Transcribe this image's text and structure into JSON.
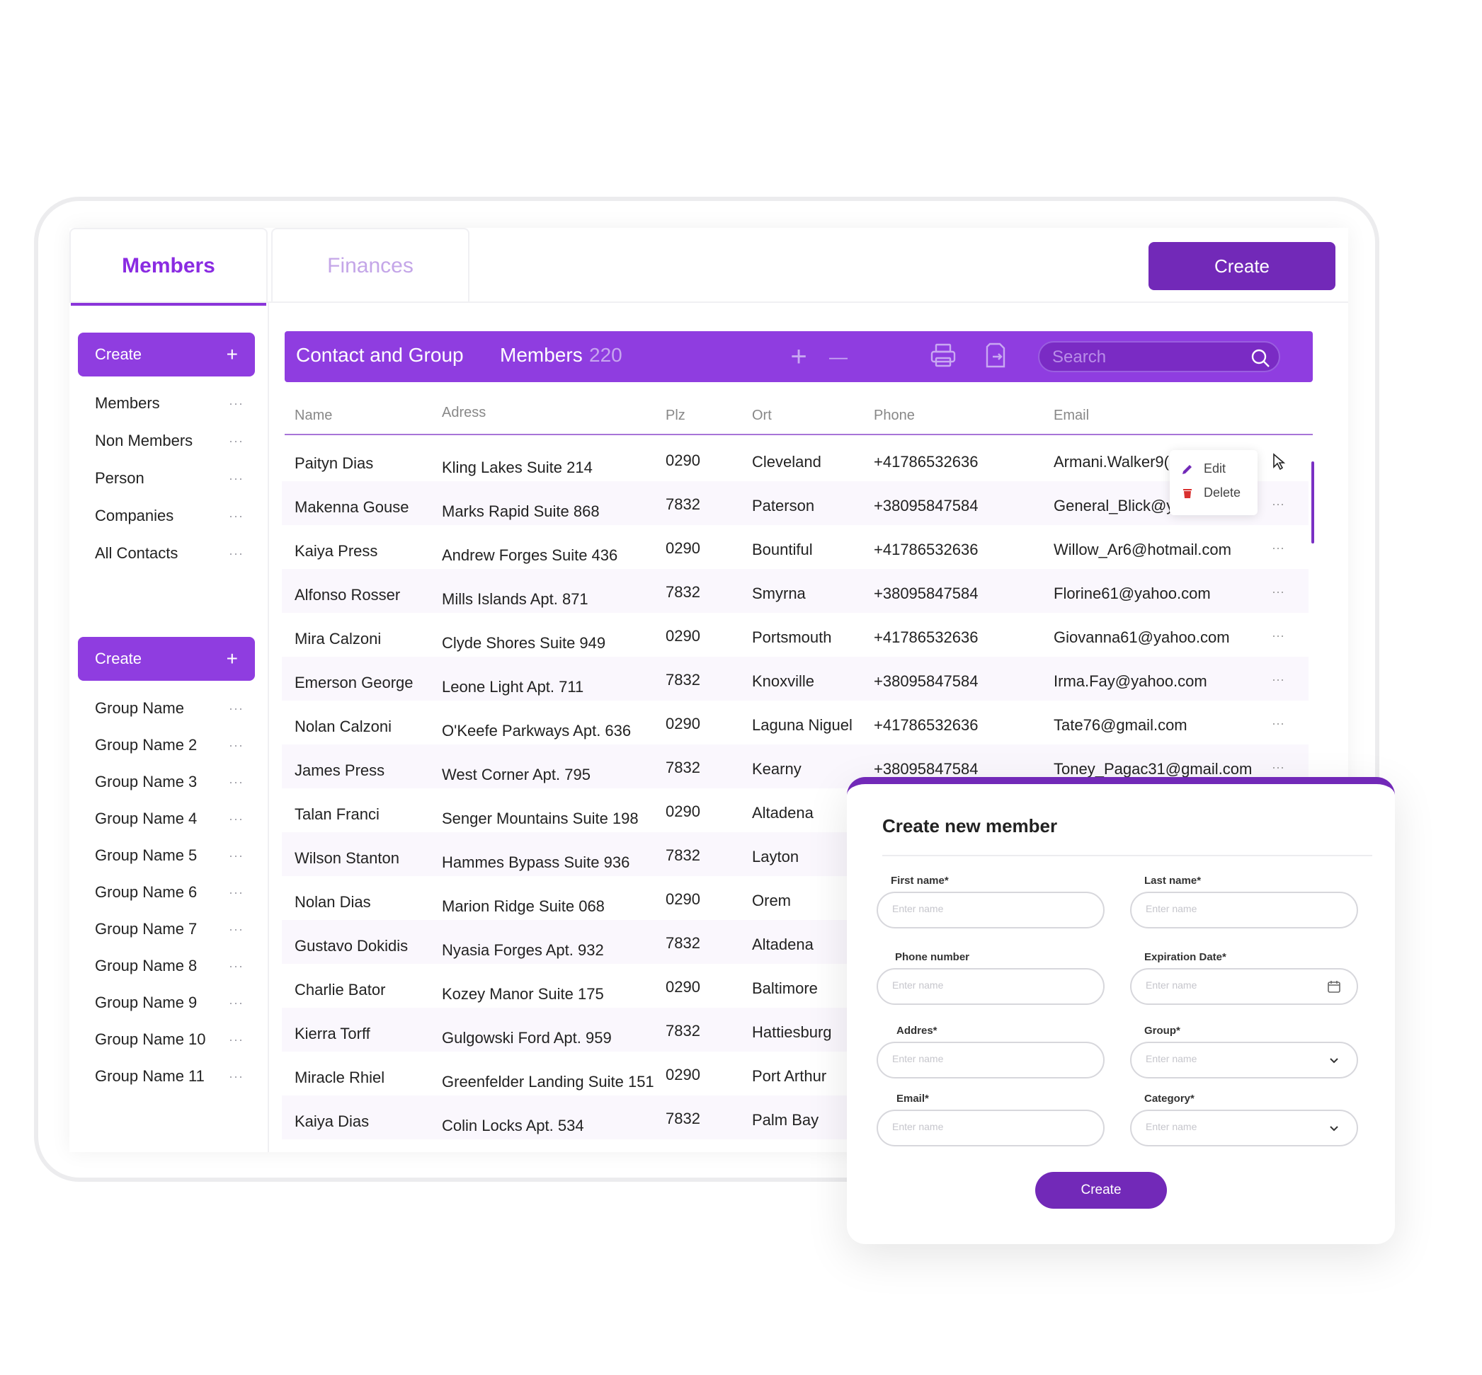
{
  "tabs": {
    "members": "Members",
    "finances": "Finances"
  },
  "top_create": "Create",
  "sidebar": {
    "create1": "Create",
    "create2": "Create",
    "plus": "+",
    "dots": "···",
    "contacts": [
      "Members",
      "Non Members",
      "Person",
      "Companies",
      "All Contacts"
    ],
    "groups": [
      "Group Name",
      "Group Name 2",
      "Group Name 3",
      "Group Name 4",
      "Group Name 5",
      "Group Name 6",
      "Group Name 7",
      "Group Name 8",
      "Group Name 9",
      "Group Name 10",
      "Group Name 11"
    ]
  },
  "toolbar": {
    "title": "Contact and Group",
    "members_label": "Members",
    "members_count": "220",
    "plus": "+",
    "minus": "—",
    "search_placeholder": "Search"
  },
  "table": {
    "headers": [
      "Name",
      "Adress",
      "Plz",
      "Ort",
      "Phone",
      "Email"
    ],
    "rows": [
      [
        "Paityn Dias",
        "Kling Lakes Suite 214",
        "0290",
        "Cleveland",
        "+41786532636",
        "Armani.Walker9("
      ],
      [
        "Makenna Gouse",
        "Marks Rapid Suite 868",
        "7832",
        "Paterson",
        "+38095847584",
        "General_Blick@y"
      ],
      [
        "Kaiya Press",
        "Andrew Forges Suite 436",
        "0290",
        "Bountiful",
        "+41786532636",
        "Willow_Ar6@hotmail.com"
      ],
      [
        "Alfonso Rosser",
        "Mills Islands Apt. 871",
        "7832",
        "Smyrna",
        "+38095847584",
        "Florine61@yahoo.com"
      ],
      [
        "Mira Calzoni",
        "Clyde Shores Suite 949",
        "0290",
        "Portsmouth",
        "+41786532636",
        "Giovanna61@yahoo.com"
      ],
      [
        "Emerson George",
        "Leone Light Apt. 711",
        "7832",
        "Knoxville",
        "+38095847584",
        "Irma.Fay@yahoo.com"
      ],
      [
        "Nolan Calzoni",
        "O'Keefe Parkways Apt. 636",
        "0290",
        "Laguna Niguel",
        "+41786532636",
        "Tate76@gmail.com"
      ],
      [
        "James Press",
        "West Corner Apt. 795",
        "7832",
        "Kearny",
        "+38095847584",
        "Toney_Pagac31@gmail.com"
      ],
      [
        "Talan Franci",
        "Senger Mountains Suite 198",
        "0290",
        "Altadena",
        "",
        ""
      ],
      [
        "Wilson Stanton",
        "Hammes Bypass Suite 936",
        "7832",
        "Layton",
        "",
        ""
      ],
      [
        "Nolan Dias",
        "Marion Ridge Suite 068",
        "0290",
        "Orem",
        "",
        ""
      ],
      [
        "Gustavo Dokidis",
        "Nyasia Forges Apt. 932",
        "7832",
        "Altadena",
        "",
        ""
      ],
      [
        "Charlie Bator",
        "Kozey Manor Suite 175",
        "0290",
        "Baltimore",
        "",
        ""
      ],
      [
        "Kierra Torff",
        "Gulgowski Ford Apt. 959",
        "7832",
        "Hattiesburg",
        "",
        ""
      ],
      [
        "Miracle Rhiel",
        "Greenfelder Landing Suite 151",
        "0290",
        "Port Arthur",
        "",
        ""
      ],
      [
        "Kaiya Dias",
        "Colin Locks Apt. 534",
        "7832",
        "Palm Bay",
        "",
        ""
      ]
    ]
  },
  "context_menu": {
    "edit": "Edit",
    "delete": "Delete"
  },
  "modal": {
    "title": "Create new member",
    "first_name_label": "First name*",
    "last_name_label": "Last name*",
    "phone_label": "Phone number",
    "expiration_label": "Expiration Date*",
    "address_label": "Addres*",
    "group_label": "Group*",
    "email_label": "Email*",
    "category_label": "Category*",
    "placeholder": "Enter name",
    "create": "Create"
  },
  "colors": {
    "accent": "#8f3de0",
    "accent_dark": "#7229b8"
  }
}
